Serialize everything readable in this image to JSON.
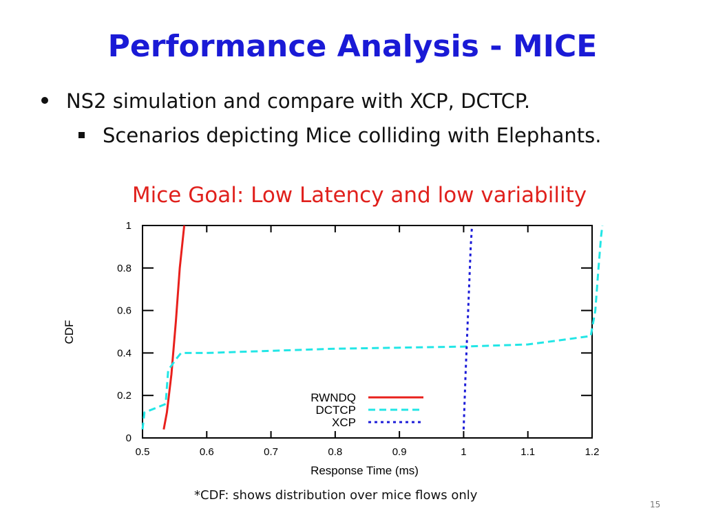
{
  "slide": {
    "title": "Performance Analysis - MICE",
    "bullet_1": "NS2 simulation and compare with XCP, DCTCP.",
    "bullet_2": "Scenarios depicting Mice colliding with Elephants.",
    "goal": "Mice Goal: Low Latency and low variability",
    "footnote": "*CDF: shows distribution over mice flows only",
    "page_number": "15"
  },
  "colors": {
    "title": "#1a1ad6",
    "goal": "#e0201c"
  },
  "chart_data": {
    "type": "line",
    "xlabel": "Response Time (ms)",
    "ylabel": "CDF",
    "xlim": [
      0.5,
      1.2
    ],
    "ylim": [
      0,
      1
    ],
    "x_ticks": [
      "0.5",
      "0.6",
      "0.7",
      "0.8",
      "0.9",
      "1",
      "1.1",
      "1.2"
    ],
    "y_ticks": [
      "0",
      "0.2",
      "0.4",
      "0.6",
      "0.8",
      "1"
    ],
    "grid": false,
    "legend_position": "bottom-center",
    "series": [
      {
        "name": "RWNDQ",
        "color": "#e8201c",
        "style": "solid",
        "points": [
          [
            0.533,
            0.04
          ],
          [
            0.538,
            0.12
          ],
          [
            0.545,
            0.3
          ],
          [
            0.552,
            0.55
          ],
          [
            0.558,
            0.8
          ],
          [
            0.565,
            1.0
          ]
        ]
      },
      {
        "name": "DCTCP",
        "color": "#22e6e6",
        "style": "dashed",
        "points": [
          [
            0.5,
            0.04
          ],
          [
            0.503,
            0.12
          ],
          [
            0.52,
            0.14
          ],
          [
            0.536,
            0.16
          ],
          [
            0.54,
            0.32
          ],
          [
            0.545,
            0.34
          ],
          [
            0.552,
            0.37
          ],
          [
            0.56,
            0.4
          ],
          [
            0.6,
            0.4
          ],
          [
            0.7,
            0.41
          ],
          [
            0.8,
            0.42
          ],
          [
            0.9,
            0.425
          ],
          [
            1.0,
            0.43
          ],
          [
            1.1,
            0.44
          ],
          [
            1.15,
            0.46
          ],
          [
            1.198,
            0.48
          ],
          [
            1.205,
            0.6
          ],
          [
            1.21,
            0.8
          ],
          [
            1.214,
            0.95
          ],
          [
            1.216,
            1.0
          ]
        ]
      },
      {
        "name": "XCP",
        "color": "#1c1cd8",
        "style": "dotted",
        "points": [
          [
            1.0,
            0.04
          ],
          [
            1.003,
            0.3
          ],
          [
            1.007,
            0.6
          ],
          [
            1.011,
            0.9
          ],
          [
            1.013,
            1.0
          ]
        ]
      }
    ]
  }
}
